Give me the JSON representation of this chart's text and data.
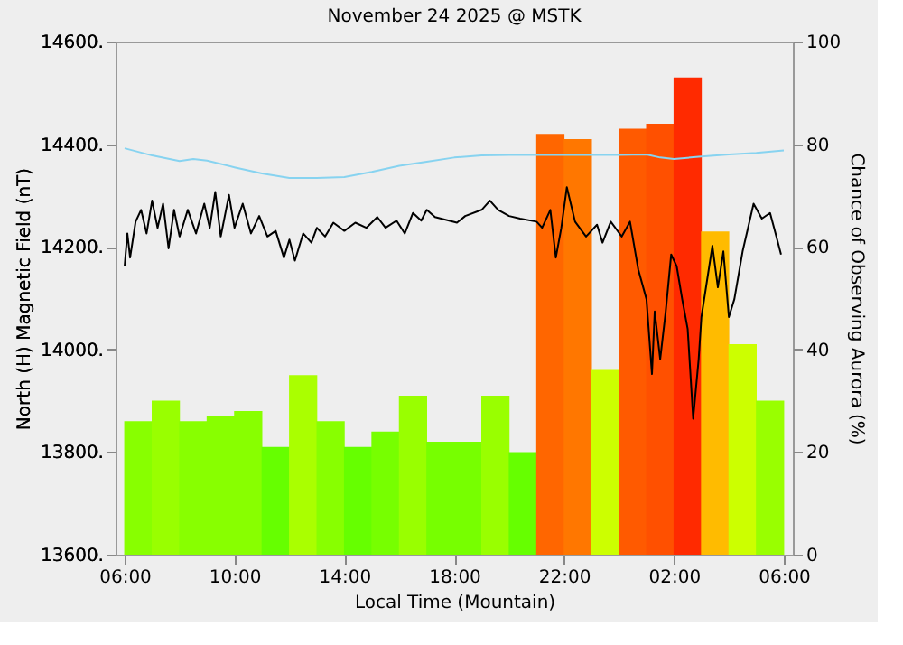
{
  "chart_data": {
    "type": "line",
    "title": "November 24 2025 @ MSTK",
    "xlabel": "Local Time (Mountain)",
    "ylabel": "North (H) Magnetic Field (nT)",
    "y2label": "Chance of Observing Aurora (%)",
    "xlim": [
      "2025-11-24T06:00",
      "2025-11-25T06:00"
    ],
    "xticks": [
      {
        "value": "2025-11-24T06:00",
        "label": "06:00"
      },
      {
        "value": "2025-11-24T10:00",
        "label": "10:00"
      },
      {
        "value": "2025-11-24T14:00",
        "label": "14:00"
      },
      {
        "value": "2025-11-24T18:00",
        "label": "18:00"
      },
      {
        "value": "2025-11-24T22:00",
        "label": "22:00"
      },
      {
        "value": "2025-11-25T02:00",
        "label": "02:00"
      },
      {
        "value": "2025-11-25T06:00",
        "label": "06:00"
      }
    ],
    "ylim": [
      13600,
      14600
    ],
    "yticks": [
      {
        "value": 13600,
        "label": "13600."
      },
      {
        "value": 13800,
        "label": "13800."
      },
      {
        "value": 14000,
        "label": "14000."
      },
      {
        "value": 14200,
        "label": "14200."
      },
      {
        "value": 14400,
        "label": "14400."
      },
      {
        "value": 14600,
        "label": "14600."
      }
    ],
    "y2lim": [
      0,
      100
    ],
    "y2ticks": [
      {
        "value": 0,
        "label": "0"
      },
      {
        "value": 20,
        "label": "20"
      },
      {
        "value": 40,
        "label": "40"
      },
      {
        "value": 60,
        "label": "60"
      },
      {
        "value": 80,
        "label": "80"
      },
      {
        "value": 100,
        "label": "100"
      }
    ],
    "grid": false,
    "series": [
      {
        "type": "bar",
        "axis": "y2",
        "x": [
          "2025-11-24T06:30",
          "2025-11-24T07:30",
          "2025-11-24T08:30",
          "2025-11-24T09:30",
          "2025-11-24T10:30",
          "2025-11-24T11:30",
          "2025-11-24T12:30",
          "2025-11-24T13:30",
          "2025-11-24T14:30",
          "2025-11-24T15:30",
          "2025-11-24T16:30",
          "2025-11-24T17:30",
          "2025-11-24T18:30",
          "2025-11-24T19:30",
          "2025-11-24T20:30",
          "2025-11-24T21:30",
          "2025-11-24T22:30",
          "2025-11-24T23:30",
          "2025-11-25T00:30",
          "2025-11-25T01:30",
          "2025-11-25T02:30",
          "2025-11-25T03:30",
          "2025-11-25T04:30",
          "2025-11-25T05:30"
        ],
        "values": [
          26,
          30,
          26,
          27,
          28,
          21,
          35,
          26,
          21,
          24,
          31,
          22,
          22,
          31,
          20,
          82,
          81,
          36,
          83,
          84,
          93,
          63,
          41,
          30
        ],
        "colors": [
          "#88ff00",
          "#99ff00",
          "#88ff00",
          "#88ff00",
          "#88ff00",
          "#66ff00",
          "#aaff00",
          "#88ff00",
          "#66ff00",
          "#77ff00",
          "#99ff00",
          "#77ff00",
          "#77ff00",
          "#99ff00",
          "#66ff00",
          "#ff6600",
          "#ff7700",
          "#ccff00",
          "#ff5a00",
          "#ff5000",
          "#ff2a00",
          "#ffbb00",
          "#ccff00",
          "#99ff00"
        ]
      },
      {
        "color": "#87d3f0",
        "x": [
          "2025-11-24T06:00",
          "2025-11-24T07:00",
          "2025-11-24T08:00",
          "2025-11-24T08:30",
          "2025-11-24T09:00",
          "2025-11-24T10:00",
          "2025-11-24T11:00",
          "2025-11-24T12:00",
          "2025-11-24T13:00",
          "2025-11-24T14:00",
          "2025-11-24T15:00",
          "2025-11-24T16:00",
          "2025-11-24T17:00",
          "2025-11-24T18:00",
          "2025-11-24T19:00",
          "2025-11-24T20:00",
          "2025-11-24T21:00",
          "2025-11-24T22:00",
          "2025-11-24T23:00",
          "2025-11-25T00:00",
          "2025-11-25T01:00",
          "2025-11-25T01:30",
          "2025-11-25T02:00",
          "2025-11-25T03:00",
          "2025-11-25T04:00",
          "2025-11-25T05:00",
          "2025-11-25T06:00"
        ],
        "values": [
          14392,
          14378,
          14367,
          14371,
          14368,
          14355,
          14343,
          14334,
          14334,
          14336,
          14346,
          14358,
          14366,
          14374,
          14378,
          14379,
          14379,
          14379,
          14379,
          14379,
          14380,
          14374,
          14371,
          14376,
          14380,
          14383,
          14388
        ]
      },
      {
        "color": "#000000",
        "x": [
          "2025-11-24T06:00",
          "2025-11-24T06:06",
          "2025-11-24T06:12",
          "2025-11-24T06:24",
          "2025-11-24T06:36",
          "2025-11-24T06:48",
          "2025-11-24T07:00",
          "2025-11-24T07:12",
          "2025-11-24T07:24",
          "2025-11-24T07:36",
          "2025-11-24T07:48",
          "2025-11-24T08:00",
          "2025-11-24T08:18",
          "2025-11-24T08:36",
          "2025-11-24T08:54",
          "2025-11-24T09:06",
          "2025-11-24T09:18",
          "2025-11-24T09:30",
          "2025-11-24T09:48",
          "2025-11-24T10:00",
          "2025-11-24T10:18",
          "2025-11-24T10:36",
          "2025-11-24T10:54",
          "2025-11-24T11:12",
          "2025-11-24T11:30",
          "2025-11-24T11:48",
          "2025-11-24T12:00",
          "2025-11-24T12:12",
          "2025-11-24T12:30",
          "2025-11-24T12:48",
          "2025-11-24T13:00",
          "2025-11-24T13:18",
          "2025-11-24T13:36",
          "2025-11-24T14:00",
          "2025-11-24T14:24",
          "2025-11-24T14:48",
          "2025-11-24T15:12",
          "2025-11-24T15:30",
          "2025-11-24T15:54",
          "2025-11-24T16:12",
          "2025-11-24T16:30",
          "2025-11-24T16:48",
          "2025-11-24T17:00",
          "2025-11-24T17:18",
          "2025-11-24T18:06",
          "2025-11-24T18:24",
          "2025-11-24T19:00",
          "2025-11-24T19:18",
          "2025-11-24T19:36",
          "2025-11-24T20:00",
          "2025-11-24T20:24",
          "2025-11-24T21:00",
          "2025-11-24T21:12",
          "2025-11-24T21:30",
          "2025-11-24T21:42",
          "2025-11-24T21:54",
          "2025-11-24T22:06",
          "2025-11-24T22:24",
          "2025-11-24T22:48",
          "2025-11-24T23:12",
          "2025-11-24T23:24",
          "2025-11-24T23:42",
          "2025-11-25T00:06",
          "2025-11-25T00:24",
          "2025-11-25T00:42",
          "2025-11-25T01:00",
          "2025-11-25T01:12",
          "2025-11-25T01:18",
          "2025-11-25T01:30",
          "2025-11-25T01:42",
          "2025-11-25T01:54",
          "2025-11-25T02:06",
          "2025-11-25T02:18",
          "2025-11-25T02:30",
          "2025-11-25T02:42",
          "2025-11-25T02:54",
          "2025-11-25T03:00",
          "2025-11-25T03:24",
          "2025-11-25T03:36",
          "2025-11-25T03:48",
          "2025-11-25T04:00",
          "2025-11-25T04:12",
          "2025-11-25T04:30",
          "2025-11-25T04:54",
          "2025-11-25T05:12",
          "2025-11-25T05:30",
          "2025-11-25T05:42",
          "2025-11-25T05:54"
        ],
        "values": [
          14162,
          14226,
          14179,
          14249,
          14272,
          14226,
          14290,
          14237,
          14284,
          14197,
          14272,
          14220,
          14272,
          14226,
          14284,
          14237,
          14307,
          14220,
          14301,
          14237,
          14284,
          14226,
          14260,
          14220,
          14231,
          14179,
          14214,
          14173,
          14226,
          14208,
          14237,
          14220,
          14247,
          14231,
          14247,
          14237,
          14258,
          14237,
          14251,
          14226,
          14266,
          14251,
          14272,
          14258,
          14247,
          14260,
          14272,
          14290,
          14272,
          14260,
          14255,
          14249,
          14237,
          14272,
          14179,
          14237,
          14316,
          14249,
          14220,
          14243,
          14208,
          14249,
          14220,
          14249,
          14156,
          14098,
          13952,
          14074,
          13981,
          14074,
          14185,
          14162,
          14098,
          14040,
          13865,
          13981,
          14063,
          14202,
          14121,
          14191,
          14063,
          14098,
          14191,
          14284,
          14255,
          14266,
          14226,
          14185
        ]
      }
    ]
  }
}
